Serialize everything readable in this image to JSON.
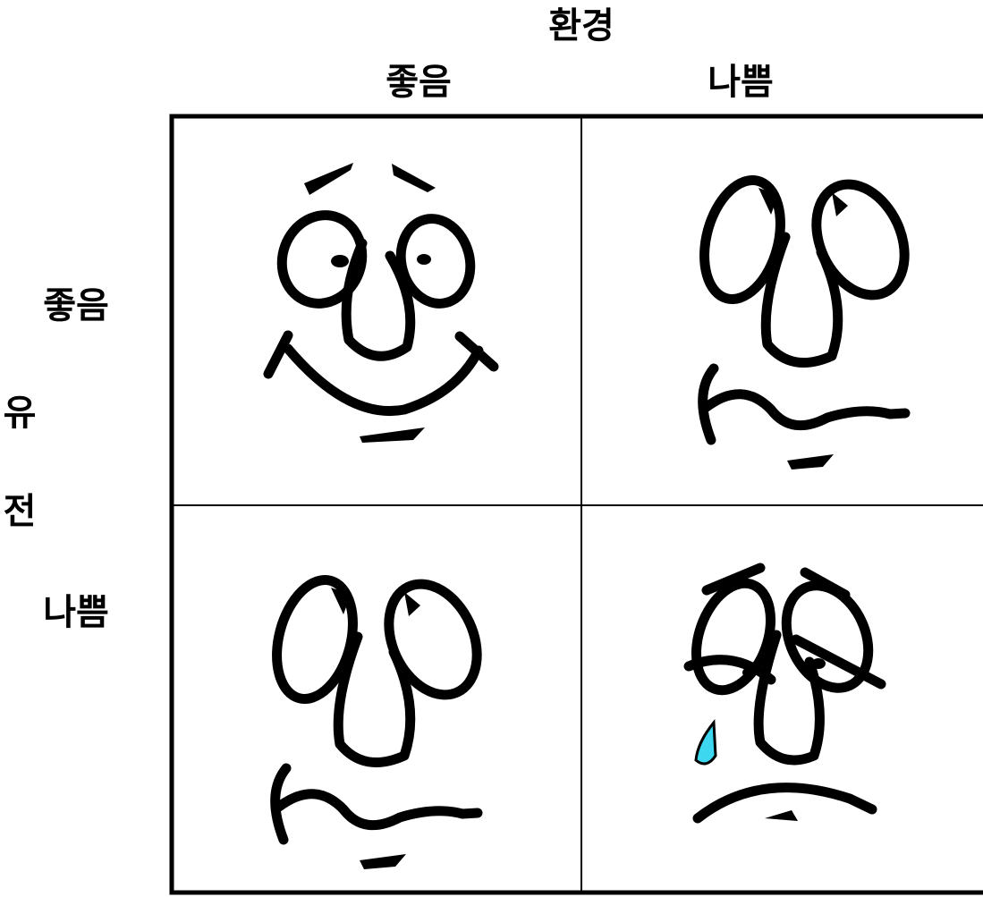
{
  "header": {
    "title": "환경",
    "columns": [
      "좋음",
      "나쁨"
    ]
  },
  "side": {
    "title_chars": [
      "유",
      "전"
    ],
    "rows": [
      "좋음",
      "나쁨"
    ]
  }
}
